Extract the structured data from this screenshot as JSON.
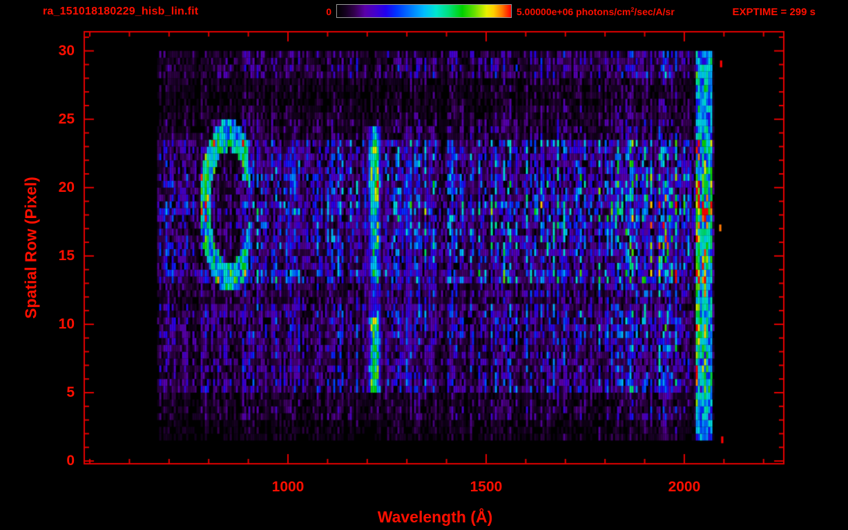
{
  "header": {
    "filename": "ra_151018180229_hisb_lin.fit",
    "exptime": "EXPTIME = 299 s"
  },
  "colorbar": {
    "min_label": "0",
    "max_value": "5.00000e+06",
    "unit_prefix": " photons/cm",
    "unit_sup": "2",
    "unit_suffix": "/sec/A/sr"
  },
  "axes": {
    "x_label": "Wavelength (Å)",
    "y_label": "Spatial Row (Pixel)",
    "x_major_ticks": [
      1000,
      1500,
      2000
    ],
    "x_minor_step": 100,
    "x_range": [
      486,
      2251
    ],
    "y_major_ticks": [
      0,
      5,
      10,
      15,
      20,
      25,
      30
    ],
    "y_minor_step": 1,
    "y_range": [
      -0.2,
      31.4
    ]
  },
  "colors": {
    "text_red": "#ff0f00",
    "frame_red": "#e60000",
    "background": "#000000"
  },
  "chart_data": {
    "type": "heatmap",
    "title": "ra_151018180229_hisb_lin.fit",
    "xlabel": "Wavelength (Å)",
    "ylabel": "Spatial Row (Pixel)",
    "x_range": [
      486,
      2251
    ],
    "y_range": [
      -0.2,
      31.4
    ],
    "intensity_min": 0,
    "intensity_max": 5000000,
    "intensity_units": "photons/cm2/sec/A/sr",
    "exposure_time_s": 299,
    "legend_position": "top",
    "grid": false,
    "data_extent": {
      "wavelength": [
        670,
        2075
      ],
      "rows": [
        1.5,
        30
      ]
    },
    "colormap": [
      [
        0.0,
        "#000000"
      ],
      [
        0.05,
        "#14001f"
      ],
      [
        0.1,
        "#33004d"
      ],
      [
        0.16,
        "#5a00a8"
      ],
      [
        0.22,
        "#4400cc"
      ],
      [
        0.28,
        "#2200ee"
      ],
      [
        0.34,
        "#0033ff"
      ],
      [
        0.42,
        "#0077ff"
      ],
      [
        0.5,
        "#00bbff"
      ],
      [
        0.57,
        "#00e6d0"
      ],
      [
        0.64,
        "#00e080"
      ],
      [
        0.72,
        "#00d000"
      ],
      [
        0.79,
        "#66e000"
      ],
      [
        0.86,
        "#e8f000"
      ],
      [
        0.9,
        "#ffd000"
      ],
      [
        0.95,
        "#ff7700"
      ],
      [
        1.0,
        "#ff0000"
      ]
    ],
    "row_bands": [
      {
        "rows": [
          0.0,
          1.5
        ],
        "base": 0.012
      },
      {
        "rows": [
          1.5,
          3.0
        ],
        "base": 0.05
      },
      {
        "rows": [
          3.0,
          4.6
        ],
        "base": 0.09
      },
      {
        "rows": [
          4.6,
          11.5
        ],
        "base": 0.17
      },
      {
        "rows": [
          11.5,
          13.0
        ],
        "base": 0.11
      },
      {
        "rows": [
          13.0,
          23.5
        ],
        "base": 0.23
      },
      {
        "rows": [
          23.5,
          25.0
        ],
        "base": 0.1
      },
      {
        "rows": [
          25.0,
          28.0
        ],
        "base": 0.06
      },
      {
        "rows": [
          28.0,
          30.0
        ],
        "base": 0.1
      }
    ],
    "continuum": [
      [
        668,
        0.75
      ],
      [
        760,
        0.9
      ],
      [
        900,
        0.92
      ],
      [
        1000,
        0.8
      ],
      [
        1120,
        0.82
      ],
      [
        1180,
        0.85
      ],
      [
        1260,
        0.95
      ],
      [
        1420,
        0.95
      ],
      [
        1600,
        1.0
      ],
      [
        1750,
        1.15
      ],
      [
        1900,
        1.35
      ],
      [
        1990,
        1.5
      ],
      [
        2025,
        1.35
      ],
      [
        2068,
        1.2
      ],
      [
        2075,
        0.5
      ]
    ],
    "features": {
      "emission_lines": [
        {
          "name": "Lyman-alpha",
          "wavelength": 1216,
          "sigma": 9,
          "rows": [
            4.6,
            24
          ],
          "amplitude": 0.5,
          "bright_knots": [
            {
              "rows": [
                4.8,
                10.2
              ],
              "extra": 0.2
            },
            {
              "rows": [
                18.8,
                23.4
              ],
              "extra": 0.2
            }
          ],
          "dim_segments": [
            {
              "rows": [
                10.5,
                13.0
              ],
              "factor": 0.55
            }
          ]
        },
        {
          "name": "line-1302",
          "wavelength": 1302,
          "sigma": 7,
          "rows": [
            5,
            24
          ],
          "amplitude": 0.13
        },
        {
          "name": "line-1356",
          "wavelength": 1356,
          "sigma": 6,
          "rows": [
            5,
            24
          ],
          "amplitude": 0.08
        },
        {
          "name": "line-1017",
          "wavelength": 1017,
          "sigma": 6,
          "rows": [
            5,
            24
          ],
          "amplitude": 0.08
        }
      ],
      "crescent": {
        "wavelength_center": 850,
        "row_center": 18.4,
        "wavelength_radius": 62,
        "row_radius": 5.2,
        "radial_thickness": 0.21,
        "max_dx": 0.75,
        "amplitude": 0.45,
        "inner_suppression": 0.55
      },
      "long_wavelength_band": {
        "wavelength": [
          2026,
          2068
        ],
        "rows": [
          1.5,
          30
        ],
        "amplitude": 0.42
      },
      "hot_pixels": [
        {
          "wavelength": 2090,
          "row": 28.8,
          "value": 1.0
        },
        {
          "wavelength": 2093,
          "row": 1.3,
          "value": 1.0
        },
        {
          "wavelength": 2088,
          "row": 16.8,
          "value": 0.95
        }
      ]
    }
  }
}
